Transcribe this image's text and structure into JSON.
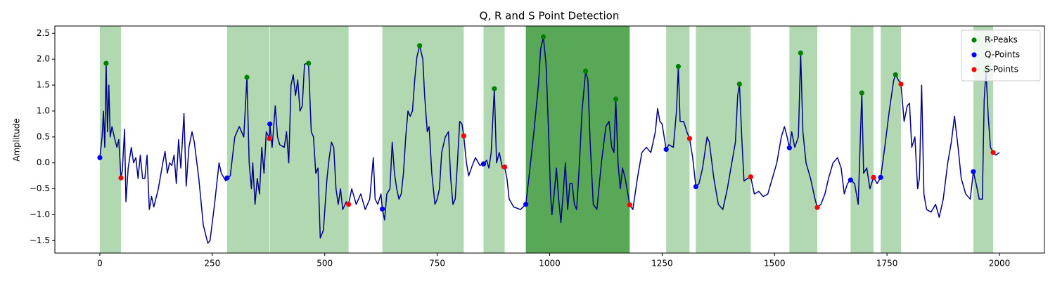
{
  "chart_data": {
    "type": "line",
    "title": "Q, R and S Point Detection",
    "y_label": "Amplitude",
    "xlim": [
      -100,
      2100
    ],
    "ylim": [
      -1.74,
      2.64
    ],
    "xticks": [
      0,
      250,
      500,
      750,
      1000,
      1250,
      1500,
      1750,
      2000
    ],
    "yticks": [
      {
        "value": -1.5,
        "label": "−1.5"
      },
      {
        "value": -1.0,
        "label": "−1.0"
      },
      {
        "value": -0.5,
        "label": "−0.5"
      },
      {
        "value": 0,
        "label": "0.0"
      },
      0.5,
      {
        "value": 1.0,
        "label": "1.0"
      },
      1.5,
      {
        "value": 2.0,
        "label": "2.0"
      },
      2.5
    ],
    "legend": "upper right",
    "spans": [
      {
        "start": 0,
        "end": 47,
        "color": "#b2d8b2"
      },
      {
        "start": 283,
        "end": 377,
        "color": "#b2d8b2"
      },
      {
        "start": 378,
        "end": 553,
        "color": "#b2d8b2"
      },
      {
        "start": 628,
        "end": 809,
        "color": "#b2d8b2"
      },
      {
        "start": 853,
        "end": 900,
        "color": "#b2d8b2"
      },
      {
        "start": 947,
        "end": 1178,
        "color": "#58a858"
      },
      {
        "start": 1259,
        "end": 1311,
        "color": "#b2d8b2"
      },
      {
        "start": 1325,
        "end": 1447,
        "color": "#b2d8b2"
      },
      {
        "start": 1533,
        "end": 1595,
        "color": "#b2d8b2"
      },
      {
        "start": 1669,
        "end": 1720,
        "color": "#b2d8b2"
      },
      {
        "start": 1736,
        "end": 1781,
        "color": "#b2d8b2"
      },
      {
        "start": 1942,
        "end": 1986,
        "color": "#b2d8b2"
      }
    ],
    "series": [
      {
        "type": "line",
        "color": "#00008b",
        "x": [
          0,
          5,
          8,
          11,
          14,
          17,
          20,
          23,
          27,
          32,
          38,
          42,
          47,
          50,
          55,
          58,
          63,
          70,
          75,
          80,
          85,
          90,
          95,
          100,
          105,
          110,
          115,
          120,
          130,
          140,
          145,
          150,
          155,
          160,
          165,
          170,
          175,
          180,
          187,
          192,
          198,
          205,
          210,
          220,
          230,
          240,
          245,
          255,
          265,
          270,
          280,
          283,
          290,
          300,
          310,
          320,
          327,
          332,
          337,
          340,
          345,
          350,
          355,
          360,
          365,
          370,
          377,
          378,
          383,
          390,
          395,
          400,
          410,
          415,
          420,
          425,
          430,
          435,
          440,
          445,
          450,
          455,
          460,
          464,
          470,
          475,
          480,
          485,
          490,
          497,
          505,
          510,
          515,
          520,
          525,
          530,
          535,
          540,
          548,
          553,
          560,
          570,
          580,
          590,
          600,
          608,
          612,
          618,
          625,
          628,
          633,
          638,
          645,
          650,
          655,
          660,
          665,
          670,
          675,
          680,
          685,
          690,
          695,
          700,
          705,
          711,
          718,
          722,
          728,
          732,
          738,
          745,
          750,
          755,
          760,
          768,
          775,
          780,
          785,
          790,
          795,
          800,
          805,
          809,
          815,
          820,
          828,
          835,
          845,
          853,
          860,
          865,
          870,
          877,
          882,
          888,
          895,
          900,
          905,
          910,
          920,
          935,
          947,
          955,
          965,
          975,
          980,
          986,
          992,
          998,
          1002,
          1005,
          1010,
          1015,
          1020,
          1025,
          1030,
          1035,
          1040,
          1045,
          1050,
          1055,
          1060,
          1065,
          1072,
          1080,
          1085,
          1090,
          1097,
          1105,
          1115,
          1125,
          1132,
          1138,
          1143,
          1147,
          1152,
          1157,
          1162,
          1168,
          1178,
          1185,
          1195,
          1205,
          1215,
          1225,
          1235,
          1240,
          1245,
          1250,
          1259,
          1265,
          1275,
          1282,
          1286,
          1290,
          1298,
          1305,
          1311,
          1318,
          1325,
          1332,
          1340,
          1350,
          1355,
          1365,
          1375,
          1385,
          1395,
          1405,
          1413,
          1418,
          1422,
          1427,
          1432,
          1440,
          1447,
          1455,
          1465,
          1475,
          1485,
          1495,
          1505,
          1515,
          1522,
          1528,
          1533,
          1538,
          1545,
          1553,
          1558,
          1563,
          1570,
          1580,
          1590,
          1595,
          1603,
          1612,
          1620,
          1630,
          1640,
          1648,
          1655,
          1662,
          1669,
          1678,
          1686,
          1690,
          1694,
          1698,
          1705,
          1712,
          1720,
          1728,
          1736,
          1745,
          1755,
          1765,
          1769,
          1775,
          1781,
          1788,
          1795,
          1800,
          1805,
          1812,
          1818,
          1822,
          1827,
          1832,
          1838,
          1848,
          1858,
          1866,
          1875,
          1885,
          1893,
          1900,
          1908,
          1915,
          1925,
          1935,
          1942,
          1948,
          1955,
          1962,
          1966,
          1970,
          1975,
          1980,
          1986,
          1992,
          2000
        ],
        "values": [
          0.1,
          0.5,
          1.0,
          0.3,
          1.92,
          0.6,
          1.5,
          0.5,
          0.7,
          0.5,
          0.3,
          0.45,
          -0.29,
          -0.15,
          0.65,
          -0.75,
          -0.1,
          0.3,
          0.0,
          0.1,
          -0.3,
          0.15,
          -0.3,
          -0.3,
          0.15,
          -0.9,
          -0.65,
          -0.85,
          -0.5,
          0.0,
          0.22,
          -0.2,
          0.0,
          -0.05,
          0.15,
          -0.4,
          0.45,
          -0.1,
          0.95,
          -0.45,
          0.3,
          0.6,
          0.4,
          -0.3,
          -1.2,
          -1.55,
          -1.5,
          -0.8,
          0.0,
          -0.2,
          -0.35,
          -0.29,
          -0.25,
          0.5,
          0.7,
          0.5,
          1.65,
          0.0,
          -0.5,
          0.0,
          -0.8,
          -0.3,
          -0.6,
          0.3,
          -0.2,
          0.6,
          0.47,
          0.75,
          0.3,
          1.1,
          0.5,
          0.35,
          0.3,
          0.6,
          0.0,
          1.5,
          1.7,
          1.3,
          1.6,
          1.0,
          1.1,
          1.9,
          1.92,
          1.92,
          0.6,
          0.5,
          -0.2,
          -0.1,
          -1.45,
          -1.3,
          -0.3,
          0.1,
          0.4,
          0.3,
          -0.5,
          -0.8,
          -0.5,
          -0.9,
          -0.75,
          -0.8,
          -0.5,
          -0.8,
          -0.6,
          -0.9,
          -0.7,
          0.1,
          -0.7,
          -0.8,
          -0.6,
          -0.89,
          -1.1,
          -0.6,
          -0.5,
          0.4,
          -0.2,
          -0.5,
          -0.7,
          -0.6,
          -0.2,
          0.5,
          1.0,
          0.9,
          1.0,
          1.6,
          2.05,
          2.26,
          2.0,
          1.3,
          0.6,
          0.7,
          -0.2,
          -0.8,
          -0.7,
          -0.5,
          0.2,
          0.5,
          0.6,
          -0.3,
          -0.8,
          -0.7,
          0.0,
          0.8,
          0.75,
          0.52,
          0.0,
          -0.25,
          -0.05,
          0.1,
          -0.05,
          -0.02,
          0.05,
          -0.1,
          0.2,
          1.43,
          0.0,
          0.2,
          -0.1,
          -0.08,
          -0.3,
          -0.7,
          -0.85,
          -0.9,
          -0.8,
          -0.2,
          0.6,
          1.5,
          2.2,
          2.43,
          1.9,
          0.5,
          -0.6,
          -1.0,
          -0.6,
          -0.1,
          -0.7,
          -1.15,
          -0.6,
          0.0,
          -0.9,
          -0.4,
          -0.4,
          -0.8,
          -0.9,
          -0.2,
          1.0,
          1.77,
          1.6,
          0.4,
          -0.8,
          -0.9,
          0.0,
          0.7,
          0.8,
          0.3,
          0.2,
          1.23,
          0.0,
          -0.5,
          -0.1,
          -0.3,
          -0.81,
          -0.9,
          -0.3,
          0.2,
          0.3,
          0.2,
          0.6,
          1.05,
          0.8,
          0.75,
          0.26,
          0.35,
          0.3,
          1.0,
          1.86,
          0.8,
          0.8,
          0.6,
          0.47,
          0.1,
          -0.46,
          -0.4,
          -0.1,
          0.5,
          0.4,
          -0.3,
          -0.8,
          -0.9,
          -0.5,
          0.0,
          0.4,
          1.3,
          1.52,
          0.5,
          -0.35,
          -0.3,
          -0.27,
          -0.6,
          -0.55,
          -0.65,
          -0.6,
          -0.3,
          0.0,
          0.5,
          0.7,
          0.5,
          0.29,
          0.6,
          0.3,
          0.5,
          2.12,
          0.6,
          0.0,
          -0.3,
          -0.7,
          -0.86,
          -0.8,
          -0.6,
          -0.3,
          0.0,
          0.1,
          -0.1,
          -0.6,
          -0.4,
          -0.33,
          -0.4,
          -0.8,
          0.3,
          1.35,
          -0.2,
          -0.1,
          -0.5,
          -0.28,
          -0.4,
          -0.28,
          0.3,
          1.0,
          1.6,
          1.7,
          1.6,
          1.52,
          0.8,
          1.1,
          1.15,
          0.3,
          0.5,
          -0.5,
          -0.3,
          1.5,
          -0.6,
          -0.9,
          -0.95,
          -0.8,
          -1.05,
          -0.7,
          0.0,
          0.4,
          0.9,
          0.3,
          -0.3,
          -0.6,
          -0.7,
          -0.17,
          -0.4,
          -0.7,
          -0.7,
          1.2,
          1.78,
          0.9,
          0.3,
          0.2,
          0.15,
          0.2
        ]
      },
      {
        "type": "scatter",
        "name": "R-Peaks",
        "color": "green",
        "x": [
          14,
          327,
          464,
          711,
          877,
          986,
          1080,
          1147,
          1286,
          1422,
          1558,
          1694,
          1769,
          1970
        ],
        "values": [
          1.92,
          1.65,
          1.92,
          2.26,
          1.43,
          2.43,
          1.77,
          1.23,
          1.86,
          1.52,
          2.12,
          1.35,
          1.7,
          1.78
        ]
      },
      {
        "type": "scatter",
        "name": "Q-Points",
        "color": "blue",
        "x": [
          0,
          283,
          378,
          628,
          853,
          947,
          1259,
          1325,
          1533,
          1669,
          1736,
          1942
        ],
        "values": [
          0.1,
          -0.29,
          0.75,
          -0.89,
          -0.02,
          -0.8,
          0.26,
          -0.46,
          0.29,
          -0.33,
          -0.28,
          -0.17
        ]
      },
      {
        "type": "scatter",
        "name": "S-Points",
        "color": "red",
        "x": [
          47,
          377,
          553,
          809,
          900,
          1178,
          1311,
          1447,
          1595,
          1720,
          1781,
          1986
        ],
        "values": [
          -0.29,
          0.47,
          -0.8,
          0.52,
          -0.08,
          -0.81,
          0.47,
          -0.27,
          -0.86,
          -0.28,
          1.52,
          0.2
        ]
      }
    ]
  }
}
